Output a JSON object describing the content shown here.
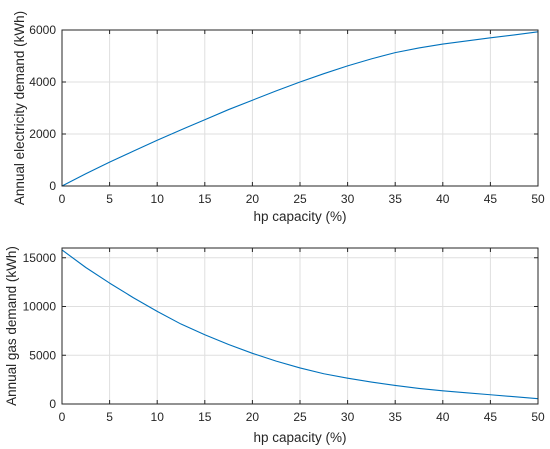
{
  "chart_data": [
    {
      "type": "line",
      "xlabel": "hp capacity (%)",
      "ylabel": "Annual electricity demand (kWh)",
      "xlim": [
        0,
        50
      ],
      "ylim": [
        0,
        6000
      ],
      "xticks": [
        0,
        5,
        10,
        15,
        20,
        25,
        30,
        35,
        40,
        45,
        50
      ],
      "yticks": [
        0,
        2000,
        4000,
        6000
      ],
      "grid": true,
      "color": "#0072BD",
      "series": [
        {
          "x": [
            0,
            2.5,
            5,
            7.5,
            10,
            12.5,
            15,
            17.5,
            20,
            22.5,
            25,
            27.5,
            30,
            32.5,
            35,
            37.5,
            40,
            42.5,
            45,
            47.5,
            50
          ],
          "values": [
            0,
            470,
            920,
            1340,
            1760,
            2160,
            2550,
            2940,
            3300,
            3660,
            4000,
            4320,
            4620,
            4890,
            5130,
            5310,
            5460,
            5580,
            5700,
            5810,
            5930
          ]
        }
      ]
    },
    {
      "type": "line",
      "xlabel": "hp capacity (%)",
      "ylabel": "Annual gas demand (kWh)",
      "xlim": [
        0,
        50
      ],
      "ylim": [
        0,
        16000
      ],
      "xticks": [
        0,
        5,
        10,
        15,
        20,
        25,
        30,
        35,
        40,
        45,
        50
      ],
      "yticks": [
        0,
        5000,
        10000,
        15000
      ],
      "grid": true,
      "color": "#0072BD",
      "series": [
        {
          "x": [
            0,
            2.5,
            5,
            7.5,
            10,
            12.5,
            15,
            17.5,
            20,
            22.5,
            25,
            27.5,
            30,
            32.5,
            35,
            37.5,
            40,
            42.5,
            45,
            47.5,
            50
          ],
          "values": [
            15800,
            14000,
            12400,
            10900,
            9500,
            8200,
            7100,
            6100,
            5200,
            4400,
            3700,
            3100,
            2650,
            2250,
            1900,
            1600,
            1350,
            1150,
            950,
            750,
            550
          ]
        }
      ]
    }
  ]
}
